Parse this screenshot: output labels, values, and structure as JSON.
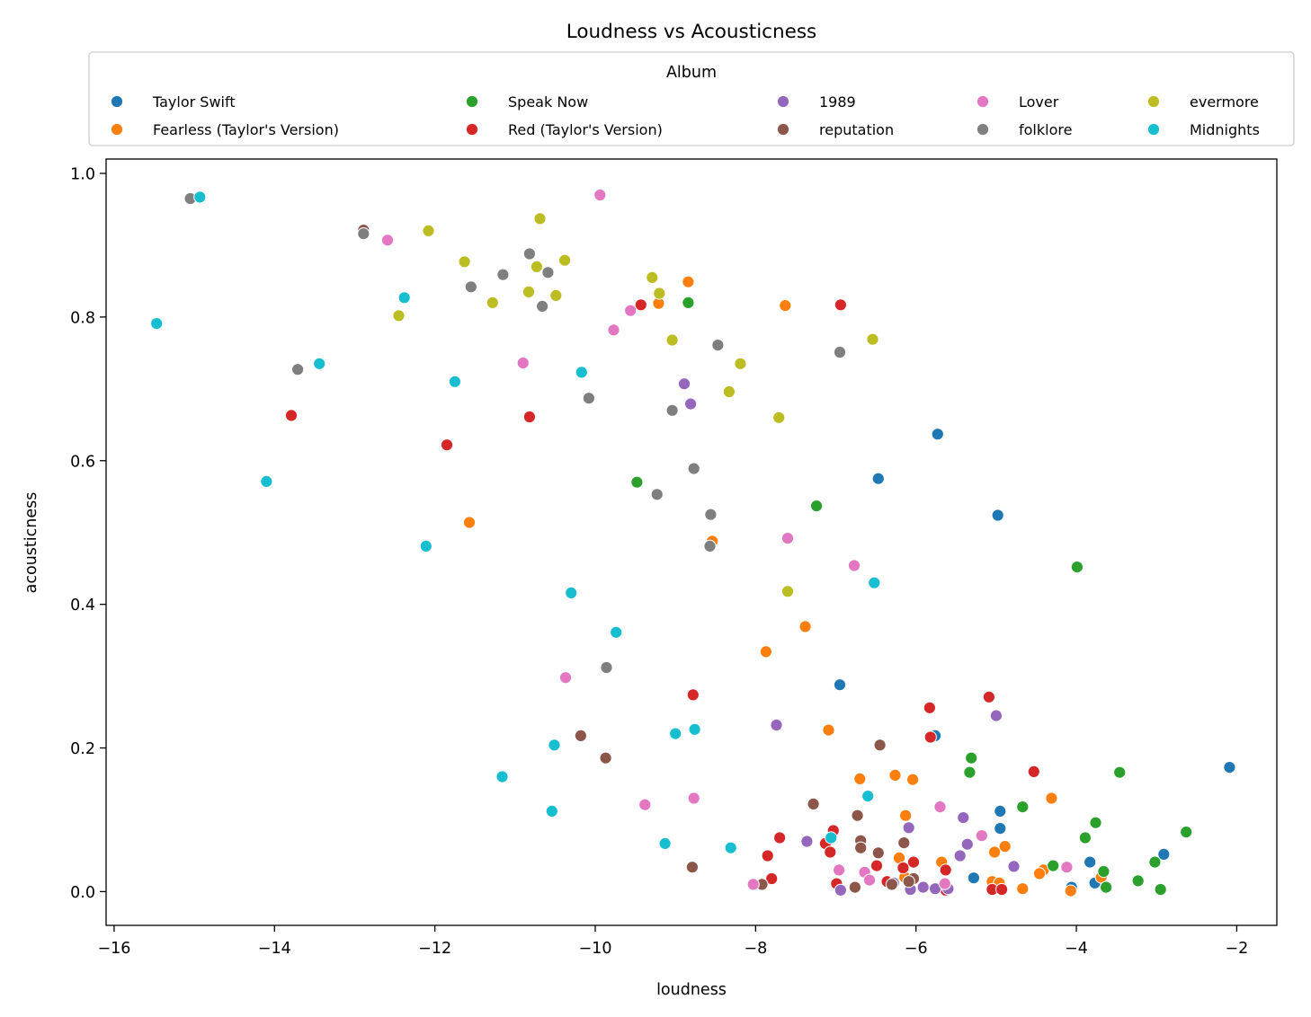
{
  "chart_data": {
    "type": "scatter",
    "title": "Loudness vs Acousticness",
    "xlabel": "loudness",
    "ylabel": "acousticness",
    "xlim": [
      -16.1,
      -1.5
    ],
    "ylim": [
      -0.047,
      1.02
    ],
    "xticks": [
      -16,
      -14,
      -12,
      -10,
      -8,
      -6,
      -4,
      -2
    ],
    "xtick_labels": [
      "−16",
      "−14",
      "−12",
      "−10",
      "−8",
      "−6",
      "−4",
      "−2"
    ],
    "yticks": [
      0.0,
      0.2,
      0.4,
      0.6,
      0.8,
      1.0
    ],
    "ytick_labels": [
      "0.0",
      "0.2",
      "0.4",
      "0.6",
      "0.8",
      "1.0"
    ],
    "grid": false,
    "legend": {
      "title": "Album",
      "placement": "top-center, above plot",
      "columns": 5
    },
    "series": [
      {
        "name": "Taylor Swift",
        "color": "#1f77b4",
        "points": [
          [
            -5.73,
            0.637
          ],
          [
            -6.47,
            0.575
          ],
          [
            -4.98,
            0.524
          ],
          [
            -6.95,
            0.288
          ],
          [
            -5.76,
            0.217
          ],
          [
            -2.09,
            0.173
          ],
          [
            -4.95,
            0.112
          ],
          [
            -4.95,
            0.088
          ],
          [
            -2.91,
            0.052
          ],
          [
            -3.83,
            0.041
          ],
          [
            -5.28,
            0.019
          ],
          [
            -3.77,
            0.012
          ],
          [
            -4.06,
            0.006
          ]
        ]
      },
      {
        "name": "Fearless (Taylor's Version)",
        "color": "#ff7f0e",
        "points": [
          [
            -8.84,
            0.849
          ],
          [
            -9.21,
            0.819
          ],
          [
            -7.63,
            0.816
          ],
          [
            -11.57,
            0.514
          ],
          [
            -8.54,
            0.488
          ],
          [
            -7.38,
            0.369
          ],
          [
            -7.87,
            0.334
          ],
          [
            -7.09,
            0.225
          ],
          [
            -6.7,
            0.157
          ],
          [
            -6.26,
            0.162
          ],
          [
            -6.04,
            0.156
          ],
          [
            -4.31,
            0.13
          ],
          [
            -4.67,
            0.117
          ],
          [
            -6.13,
            0.106
          ],
          [
            -4.89,
            0.063
          ],
          [
            -5.02,
            0.055
          ],
          [
            -6.21,
            0.047
          ],
          [
            -5.68,
            0.041
          ],
          [
            -4.41,
            0.03
          ],
          [
            -4.46,
            0.025
          ],
          [
            -5.05,
            0.014
          ],
          [
            -4.96,
            0.012
          ],
          [
            -4.67,
            0.004
          ],
          [
            -4.07,
            0.001
          ],
          [
            -3.69,
            0.02
          ],
          [
            -6.14,
            0.02
          ]
        ]
      },
      {
        "name": "Speak Now",
        "color": "#2ca02c",
        "points": [
          [
            -8.84,
            0.82
          ],
          [
            -9.48,
            0.57
          ],
          [
            -7.24,
            0.537
          ],
          [
            -3.99,
            0.452
          ],
          [
            -5.31,
            0.186
          ],
          [
            -5.33,
            0.166
          ],
          [
            -3.46,
            0.166
          ],
          [
            -4.67,
            0.118
          ],
          [
            -3.76,
            0.096
          ],
          [
            -2.63,
            0.083
          ],
          [
            -3.89,
            0.075
          ],
          [
            -3.02,
            0.041
          ],
          [
            -4.29,
            0.036
          ],
          [
            -3.66,
            0.028
          ],
          [
            -3.23,
            0.015
          ],
          [
            -3.63,
            0.006
          ],
          [
            -2.95,
            0.003
          ]
        ]
      },
      {
        "name": "Red (Taylor's Version)",
        "color": "#d62728",
        "points": [
          [
            -9.43,
            0.817
          ],
          [
            -6.94,
            0.817
          ],
          [
            -13.79,
            0.663
          ],
          [
            -10.82,
            0.661
          ],
          [
            -11.85,
            0.622
          ],
          [
            -8.78,
            0.274
          ],
          [
            -5.83,
            0.256
          ],
          [
            -5.09,
            0.271
          ],
          [
            -5.82,
            0.215
          ],
          [
            -4.53,
            0.167
          ],
          [
            -7.03,
            0.085
          ],
          [
            -7.7,
            0.075
          ],
          [
            -7.13,
            0.067
          ],
          [
            -7.07,
            0.055
          ],
          [
            -7.85,
            0.05
          ],
          [
            -6.03,
            0.041
          ],
          [
            -6.49,
            0.036
          ],
          [
            -6.16,
            0.033
          ],
          [
            -5.63,
            0.03
          ],
          [
            -7.8,
            0.018
          ],
          [
            -6.36,
            0.014
          ],
          [
            -6.99,
            0.011
          ],
          [
            -5.63,
            0.002
          ],
          [
            -5.05,
            0.003
          ],
          [
            -4.93,
            0.003
          ]
        ]
      },
      {
        "name": "1989",
        "color": "#9467bd",
        "points": [
          [
            -8.89,
            0.707
          ],
          [
            -8.81,
            0.679
          ],
          [
            -5.0,
            0.245
          ],
          [
            -7.74,
            0.232
          ],
          [
            -5.41,
            0.103
          ],
          [
            -6.09,
            0.089
          ],
          [
            -7.36,
            0.07
          ],
          [
            -5.36,
            0.066
          ],
          [
            -5.45,
            0.05
          ],
          [
            -4.78,
            0.035
          ],
          [
            -6.28,
            0.012
          ],
          [
            -5.91,
            0.006
          ],
          [
            -5.76,
            0.004
          ],
          [
            -5.6,
            0.004
          ],
          [
            -6.07,
            0.003
          ],
          [
            -6.94,
            0.002
          ]
        ]
      },
      {
        "name": "reputation",
        "color": "#8c564b",
        "points": [
          [
            -12.89,
            0.921
          ],
          [
            -10.18,
            0.217
          ],
          [
            -9.87,
            0.186
          ],
          [
            -6.45,
            0.204
          ],
          [
            -7.28,
            0.122
          ],
          [
            -6.73,
            0.106
          ],
          [
            -6.69,
            0.071
          ],
          [
            -6.15,
            0.068
          ],
          [
            -6.69,
            0.061
          ],
          [
            -6.47,
            0.054
          ],
          [
            -8.79,
            0.034
          ],
          [
            -6.03,
            0.018
          ],
          [
            -6.09,
            0.014
          ],
          [
            -6.3,
            0.01
          ],
          [
            -7.92,
            0.01
          ],
          [
            -6.76,
            0.006
          ]
        ]
      },
      {
        "name": "Lover",
        "color": "#e377c2",
        "points": [
          [
            -9.94,
            0.97
          ],
          [
            -12.59,
            0.907
          ],
          [
            -9.56,
            0.809
          ],
          [
            -9.77,
            0.782
          ],
          [
            -10.9,
            0.736
          ],
          [
            -7.6,
            0.492
          ],
          [
            -6.77,
            0.454
          ],
          [
            -10.37,
            0.298
          ],
          [
            -8.77,
            0.13
          ],
          [
            -9.38,
            0.121
          ],
          [
            -5.7,
            0.118
          ],
          [
            -5.18,
            0.078
          ],
          [
            -4.12,
            0.034
          ],
          [
            -6.96,
            0.03
          ],
          [
            -6.64,
            0.027
          ],
          [
            -6.58,
            0.016
          ],
          [
            -5.64,
            0.011
          ],
          [
            -8.03,
            0.01
          ]
        ]
      },
      {
        "name": "folklore",
        "color": "#7f7f7f",
        "points": [
          [
            -15.05,
            0.965
          ],
          [
            -12.89,
            0.916
          ],
          [
            -10.82,
            0.888
          ],
          [
            -10.59,
            0.862
          ],
          [
            -11.15,
            0.859
          ],
          [
            -11.55,
            0.842
          ],
          [
            -10.66,
            0.815
          ],
          [
            -8.47,
            0.761
          ],
          [
            -6.95,
            0.751
          ],
          [
            -13.71,
            0.727
          ],
          [
            -10.08,
            0.687
          ],
          [
            -9.04,
            0.67
          ],
          [
            -8.77,
            0.589
          ],
          [
            -9.23,
            0.553
          ],
          [
            -8.56,
            0.525
          ],
          [
            -8.57,
            0.481
          ],
          [
            -9.86,
            0.312
          ]
        ]
      },
      {
        "name": "evermore",
        "color": "#bcbd22",
        "points": [
          [
            -10.69,
            0.937
          ],
          [
            -12.08,
            0.92
          ],
          [
            -11.63,
            0.877
          ],
          [
            -10.38,
            0.879
          ],
          [
            -10.73,
            0.87
          ],
          [
            -9.29,
            0.855
          ],
          [
            -10.83,
            0.835
          ],
          [
            -10.49,
            0.83
          ],
          [
            -9.2,
            0.833
          ],
          [
            -11.28,
            0.82
          ],
          [
            -12.45,
            0.802
          ],
          [
            -9.04,
            0.768
          ],
          [
            -6.54,
            0.769
          ],
          [
            -8.19,
            0.735
          ],
          [
            -8.33,
            0.696
          ],
          [
            -7.71,
            0.66
          ],
          [
            -7.6,
            0.418
          ]
        ]
      },
      {
        "name": "Midnights",
        "color": "#17becf",
        "points": [
          [
            -14.93,
            0.967
          ],
          [
            -12.38,
            0.827
          ],
          [
            -15.47,
            0.791
          ],
          [
            -13.44,
            0.735
          ],
          [
            -10.17,
            0.723
          ],
          [
            -11.75,
            0.71
          ],
          [
            -14.1,
            0.571
          ],
          [
            -12.11,
            0.481
          ],
          [
            -6.52,
            0.43
          ],
          [
            -10.3,
            0.416
          ],
          [
            -9.74,
            0.361
          ],
          [
            -8.76,
            0.226
          ],
          [
            -9.0,
            0.22
          ],
          [
            -10.51,
            0.204
          ],
          [
            -11.16,
            0.16
          ],
          [
            -6.6,
            0.133
          ],
          [
            -10.54,
            0.112
          ],
          [
            -7.06,
            0.075
          ],
          [
            -9.13,
            0.067
          ],
          [
            -8.31,
            0.061
          ]
        ]
      }
    ]
  }
}
